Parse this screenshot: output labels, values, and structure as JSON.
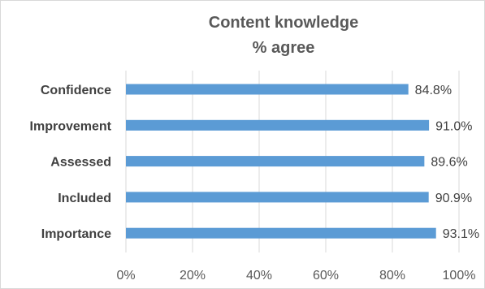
{
  "chart_data": {
    "type": "bar",
    "orientation": "horizontal",
    "title": "Content knowledge",
    "subtitle": "% agree",
    "categories": [
      "Confidence",
      "Improvement",
      "Assessed",
      "Included",
      "Importance"
    ],
    "values": [
      84.8,
      91.0,
      89.6,
      90.9,
      93.1
    ],
    "data_labels": [
      "84.8%",
      "91.0%",
      "89.6%",
      "90.9%",
      "93.1%"
    ],
    "xlim": [
      0,
      100
    ],
    "xticks": [
      0,
      20,
      40,
      60,
      80,
      100
    ],
    "xtick_labels": [
      "0%",
      "20%",
      "40%",
      "60%",
      "80%",
      "100%"
    ],
    "grid": "vertical",
    "bar_color": "#5b9bd5",
    "grid_color": "#d9d9d9"
  }
}
